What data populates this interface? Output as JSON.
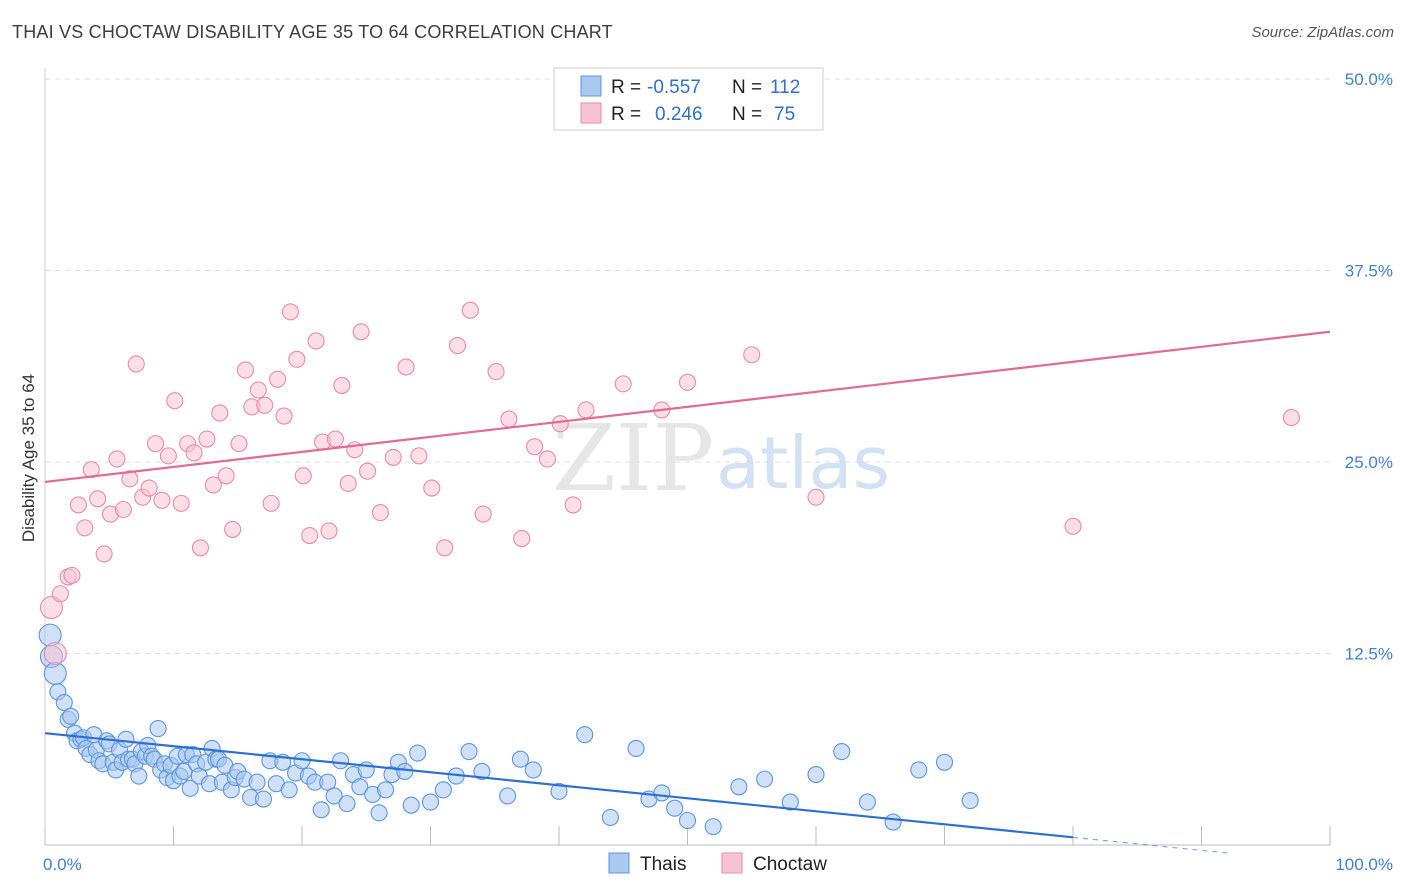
{
  "title": "THAI VS CHOCTAW DISABILITY AGE 35 TO 64 CORRELATION CHART",
  "source": "Source: ZipAtlas.com",
  "watermark": {
    "part1": "ZIP",
    "part2": "atlas"
  },
  "colors": {
    "thais_fill": "#a9c9f0",
    "thais_stroke": "#5b95de",
    "thais_line": "#2b6fd6",
    "choctaw_fill": "#f7c3d2",
    "choctaw_stroke": "#e98aa8",
    "choctaw_line": "#e36a93",
    "tick_text": "#3f7fd6",
    "grid": "#dcdcdc"
  },
  "legend": {
    "rows": [
      {
        "r_label": "R =",
        "r_value": "-0.557",
        "n_label": "N =",
        "n_value": "112"
      },
      {
        "r_label": "R =",
        "r_value": "0.246",
        "n_label": "N =",
        "n_value": "75"
      }
    ]
  },
  "bottom_legend": [
    "Thais",
    "Choctaw"
  ],
  "chart_data": {
    "type": "scatter",
    "xlabel": "",
    "ylabel": "Disability Age 35 to 64",
    "xlim": [
      0,
      100
    ],
    "ylim": [
      0,
      50
    ],
    "x_tick_labels": [
      {
        "value": 0,
        "label": "0.0%"
      },
      {
        "value": 100,
        "label": "100.0%"
      }
    ],
    "y_tick_labels": [
      {
        "value": 12.5,
        "label": "12.5%"
      },
      {
        "value": 25.0,
        "label": "25.0%"
      },
      {
        "value": 37.5,
        "label": "37.5%"
      },
      {
        "value": 50.0,
        "label": "50.0%"
      }
    ],
    "grid": true,
    "series": [
      {
        "name": "Thais",
        "r": -0.557,
        "n": 112,
        "trend": {
          "x0": 0,
          "y0": 7.3,
          "x1": 80,
          "y1": 0.5,
          "dash_to_x": 92
        },
        "points": [
          [
            0.4,
            13.7
          ],
          [
            0.5,
            12.3
          ],
          [
            0.8,
            11.2
          ],
          [
            1.0,
            10.0
          ],
          [
            1.5,
            9.3
          ],
          [
            1.8,
            8.2
          ],
          [
            2.0,
            8.4
          ],
          [
            2.3,
            7.3
          ],
          [
            2.5,
            6.8
          ],
          [
            2.8,
            6.9
          ],
          [
            3.0,
            7.0
          ],
          [
            3.2,
            6.3
          ],
          [
            3.5,
            5.9
          ],
          [
            3.8,
            7.2
          ],
          [
            4.0,
            6.2
          ],
          [
            4.2,
            5.5
          ],
          [
            4.5,
            5.3
          ],
          [
            4.8,
            6.8
          ],
          [
            5.0,
            6.6
          ],
          [
            5.3,
            5.4
          ],
          [
            5.5,
            4.9
          ],
          [
            5.8,
            6.2
          ],
          [
            6.0,
            5.4
          ],
          [
            6.3,
            6.9
          ],
          [
            6.5,
            5.6
          ],
          [
            6.8,
            5.6
          ],
          [
            7.0,
            5.3
          ],
          [
            7.3,
            4.5
          ],
          [
            7.5,
            6.1
          ],
          [
            7.8,
            5.8
          ],
          [
            8.0,
            6.5
          ],
          [
            8.3,
            5.8
          ],
          [
            8.5,
            5.6
          ],
          [
            8.8,
            7.6
          ],
          [
            9.0,
            4.9
          ],
          [
            9.3,
            5.3
          ],
          [
            9.5,
            4.4
          ],
          [
            9.8,
            5.2
          ],
          [
            10.0,
            4.2
          ],
          [
            10.3,
            5.8
          ],
          [
            10.5,
            4.5
          ],
          [
            10.8,
            4.8
          ],
          [
            11.0,
            5.9
          ],
          [
            11.3,
            3.7
          ],
          [
            11.5,
            5.9
          ],
          [
            11.8,
            5.3
          ],
          [
            12.0,
            4.5
          ],
          [
            12.5,
            5.4
          ],
          [
            12.8,
            4.0
          ],
          [
            13.0,
            6.3
          ],
          [
            13.3,
            5.6
          ],
          [
            13.5,
            5.6
          ],
          [
            13.8,
            4.1
          ],
          [
            14.0,
            5.2
          ],
          [
            14.5,
            3.6
          ],
          [
            14.8,
            4.4
          ],
          [
            15.0,
            4.8
          ],
          [
            15.5,
            4.3
          ],
          [
            16.0,
            3.1
          ],
          [
            16.5,
            4.1
          ],
          [
            17.0,
            3.0
          ],
          [
            17.5,
            5.5
          ],
          [
            18.0,
            4.0
          ],
          [
            18.5,
            5.4
          ],
          [
            19.0,
            3.6
          ],
          [
            19.5,
            4.7
          ],
          [
            20.0,
            5.5
          ],
          [
            20.5,
            4.5
          ],
          [
            21.0,
            4.1
          ],
          [
            21.5,
            2.3
          ],
          [
            22.0,
            4.1
          ],
          [
            22.5,
            3.2
          ],
          [
            23.0,
            5.5
          ],
          [
            23.5,
            2.7
          ],
          [
            24.0,
            4.6
          ],
          [
            24.5,
            3.8
          ],
          [
            25.0,
            4.9
          ],
          [
            25.5,
            3.3
          ],
          [
            26.0,
            2.1
          ],
          [
            26.5,
            3.6
          ],
          [
            27.0,
            4.6
          ],
          [
            27.5,
            5.4
          ],
          [
            28.0,
            4.8
          ],
          [
            28.5,
            2.6
          ],
          [
            29.0,
            6.0
          ],
          [
            30.0,
            2.8
          ],
          [
            31.0,
            3.6
          ],
          [
            32.0,
            4.5
          ],
          [
            33.0,
            6.1
          ],
          [
            34.0,
            4.8
          ],
          [
            36.0,
            3.2
          ],
          [
            37.0,
            5.6
          ],
          [
            38.0,
            4.9
          ],
          [
            40.0,
            3.5
          ],
          [
            42.0,
            7.2
          ],
          [
            44.0,
            1.8
          ],
          [
            46.0,
            6.3
          ],
          [
            47.0,
            3.0
          ],
          [
            48.0,
            3.4
          ],
          [
            49.0,
            2.4
          ],
          [
            50.0,
            1.6
          ],
          [
            52.0,
            1.2
          ],
          [
            54.0,
            3.8
          ],
          [
            56.0,
            4.3
          ],
          [
            58.0,
            2.8
          ],
          [
            60.0,
            4.6
          ],
          [
            62.0,
            6.1
          ],
          [
            64.0,
            2.8
          ],
          [
            66.0,
            1.5
          ],
          [
            68.0,
            4.9
          ],
          [
            70.0,
            5.4
          ],
          [
            72.0,
            2.9
          ]
        ]
      },
      {
        "name": "Choctaw",
        "r": 0.246,
        "n": 75,
        "trend": {
          "x0": 0,
          "y0": 23.7,
          "x1": 100,
          "y1": 33.5
        },
        "points": [
          [
            0.5,
            15.5
          ],
          [
            0.8,
            12.5
          ],
          [
            1.2,
            16.4
          ],
          [
            1.8,
            17.5
          ],
          [
            2.1,
            17.6
          ],
          [
            2.6,
            22.2
          ],
          [
            3.1,
            20.7
          ],
          [
            3.6,
            24.5
          ],
          [
            4.1,
            22.6
          ],
          [
            4.6,
            19.0
          ],
          [
            5.1,
            21.6
          ],
          [
            5.6,
            25.2
          ],
          [
            6.1,
            21.9
          ],
          [
            6.6,
            23.9
          ],
          [
            7.1,
            31.4
          ],
          [
            7.6,
            22.7
          ],
          [
            8.1,
            23.3
          ],
          [
            8.6,
            26.2
          ],
          [
            9.1,
            22.5
          ],
          [
            9.6,
            25.4
          ],
          [
            10.1,
            29.0
          ],
          [
            10.6,
            22.3
          ],
          [
            11.1,
            26.2
          ],
          [
            11.6,
            25.6
          ],
          [
            12.1,
            19.4
          ],
          [
            12.6,
            26.5
          ],
          [
            13.1,
            23.5
          ],
          [
            13.6,
            28.2
          ],
          [
            14.1,
            24.1
          ],
          [
            14.6,
            20.6
          ],
          [
            15.1,
            26.2
          ],
          [
            15.6,
            31.0
          ],
          [
            16.1,
            28.6
          ],
          [
            16.6,
            29.7
          ],
          [
            17.1,
            28.7
          ],
          [
            17.6,
            22.3
          ],
          [
            18.1,
            30.4
          ],
          [
            18.6,
            28.0
          ],
          [
            19.1,
            34.8
          ],
          [
            19.6,
            31.7
          ],
          [
            20.1,
            24.1
          ],
          [
            20.6,
            20.2
          ],
          [
            21.1,
            32.9
          ],
          [
            21.6,
            26.3
          ],
          [
            22.1,
            20.5
          ],
          [
            22.6,
            26.5
          ],
          [
            23.1,
            30.0
          ],
          [
            23.6,
            23.6
          ],
          [
            24.1,
            25.8
          ],
          [
            24.6,
            33.5
          ],
          [
            25.1,
            24.4
          ],
          [
            26.1,
            21.7
          ],
          [
            27.1,
            25.3
          ],
          [
            28.1,
            31.2
          ],
          [
            29.1,
            25.4
          ],
          [
            30.1,
            23.3
          ],
          [
            31.1,
            19.4
          ],
          [
            32.1,
            32.6
          ],
          [
            33.1,
            34.9
          ],
          [
            34.1,
            21.6
          ],
          [
            35.1,
            30.9
          ],
          [
            36.1,
            27.8
          ],
          [
            37.1,
            20.0
          ],
          [
            38.1,
            26.0
          ],
          [
            39.1,
            25.2
          ],
          [
            40.1,
            27.5
          ],
          [
            41.1,
            22.2
          ],
          [
            42.1,
            28.4
          ],
          [
            45.0,
            30.1
          ],
          [
            48.0,
            28.4
          ],
          [
            50.0,
            30.2
          ],
          [
            55.0,
            32.0
          ],
          [
            60.0,
            22.7
          ],
          [
            80.0,
            20.8
          ],
          [
            97.0,
            27.9
          ]
        ]
      }
    ]
  }
}
